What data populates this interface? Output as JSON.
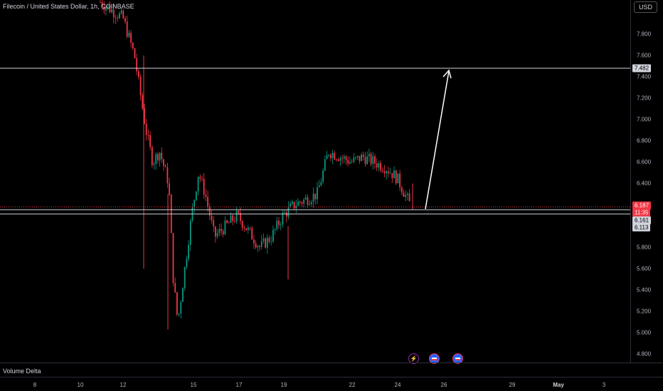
{
  "header": {
    "title": "Filecoin / United States Dollar, 1h, COINBASE",
    "currency_button": "USD"
  },
  "price_axis": {
    "ticks": [
      "7.800",
      "7.600",
      "7.400",
      "7.200",
      "7.000",
      "6.800",
      "6.600",
      "6.400",
      "5.800",
      "5.600",
      "5.400",
      "5.200",
      "5.000",
      "4.800"
    ],
    "tags": {
      "target": "7.482",
      "last_price": "6.187",
      "countdown": "11:35",
      "level_upper": "6.161",
      "level_lower": "6.113"
    }
  },
  "time_axis": {
    "labels": [
      "8",
      "10",
      "12",
      "15",
      "17",
      "19",
      "22",
      "24",
      "26",
      "29",
      "May",
      "3"
    ]
  },
  "indicator": {
    "label": "Volume Delta"
  },
  "events": [
    {
      "icon": "lightning-icon"
    },
    {
      "icon": "us-flag-icon"
    },
    {
      "icon": "us-flag-icon"
    }
  ],
  "colors": {
    "up": "#089981",
    "down": "#f23645",
    "line": "#d1d4dc",
    "background": "#000000"
  },
  "chart_data": {
    "type": "candlestick",
    "symbol": "FIL/USD",
    "interval": "1h",
    "exchange": "COINBASE",
    "ylim": [
      4.7,
      8.0
    ],
    "horizontal_levels": [
      7.482,
      6.161,
      6.113
    ],
    "last_price": 6.187,
    "target": 7.482,
    "close_path": [
      [
        "11",
        8.1
      ],
      [
        "12",
        7.95
      ],
      [
        "12.5",
        7.6
      ],
      [
        "13",
        6.9
      ],
      [
        "13.3",
        6.6
      ],
      [
        "13.6",
        6.7
      ],
      [
        "14",
        6.4
      ],
      [
        "14.2",
        5.5
      ],
      [
        "14.4",
        5.1
      ],
      [
        "15",
        6.1
      ],
      [
        "15.3",
        6.5
      ],
      [
        "15.6",
        6.3
      ],
      [
        "16",
        5.9
      ],
      [
        "17",
        6.1
      ],
      [
        "18",
        5.8
      ],
      [
        "18.5",
        5.9
      ],
      [
        "19",
        6.1
      ],
      [
        "19.5",
        6.2
      ],
      [
        "20",
        6.25
      ],
      [
        "20.5",
        6.3
      ],
      [
        "21",
        6.7
      ],
      [
        "21.5",
        6.65
      ],
      [
        "22",
        6.6
      ],
      [
        "22.5",
        6.65
      ],
      [
        "23",
        6.6
      ],
      [
        "23.5",
        6.55
      ],
      [
        "24",
        6.45
      ],
      [
        "24.6",
        6.187
      ]
    ]
  }
}
